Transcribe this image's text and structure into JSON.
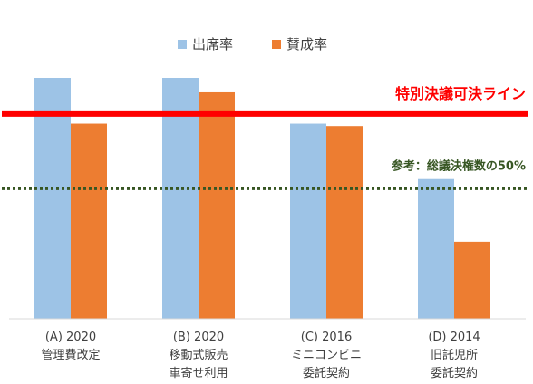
{
  "chart_data": {
    "type": "bar",
    "categories": [
      [
        "(A) 2020",
        "管理費改定"
      ],
      [
        "(B) 2020",
        "移動式販売",
        "車寄せ利用"
      ],
      [
        "(C) 2016",
        "ミニコンビニ",
        "委託契約"
      ],
      [
        "(D) 2014",
        "旧託児所",
        "委託契約"
      ]
    ],
    "series": [
      {
        "name": "出席率",
        "color": "#9dc3e6",
        "values": [
          100,
          100,
          81,
          58
        ]
      },
      {
        "name": "賛成率",
        "color": "#ed7d31",
        "values": [
          81,
          94,
          80,
          32
        ]
      }
    ],
    "ylim": [
      0,
      100
    ],
    "legend_position": "top",
    "reference_lines": [
      {
        "label": "特別決議可決ライン",
        "value": 85,
        "color": "#ff0000",
        "style": "solid"
      },
      {
        "label": "参考：総議決権数の50%",
        "value": 54,
        "color": "#375623",
        "style": "dotted"
      }
    ]
  }
}
